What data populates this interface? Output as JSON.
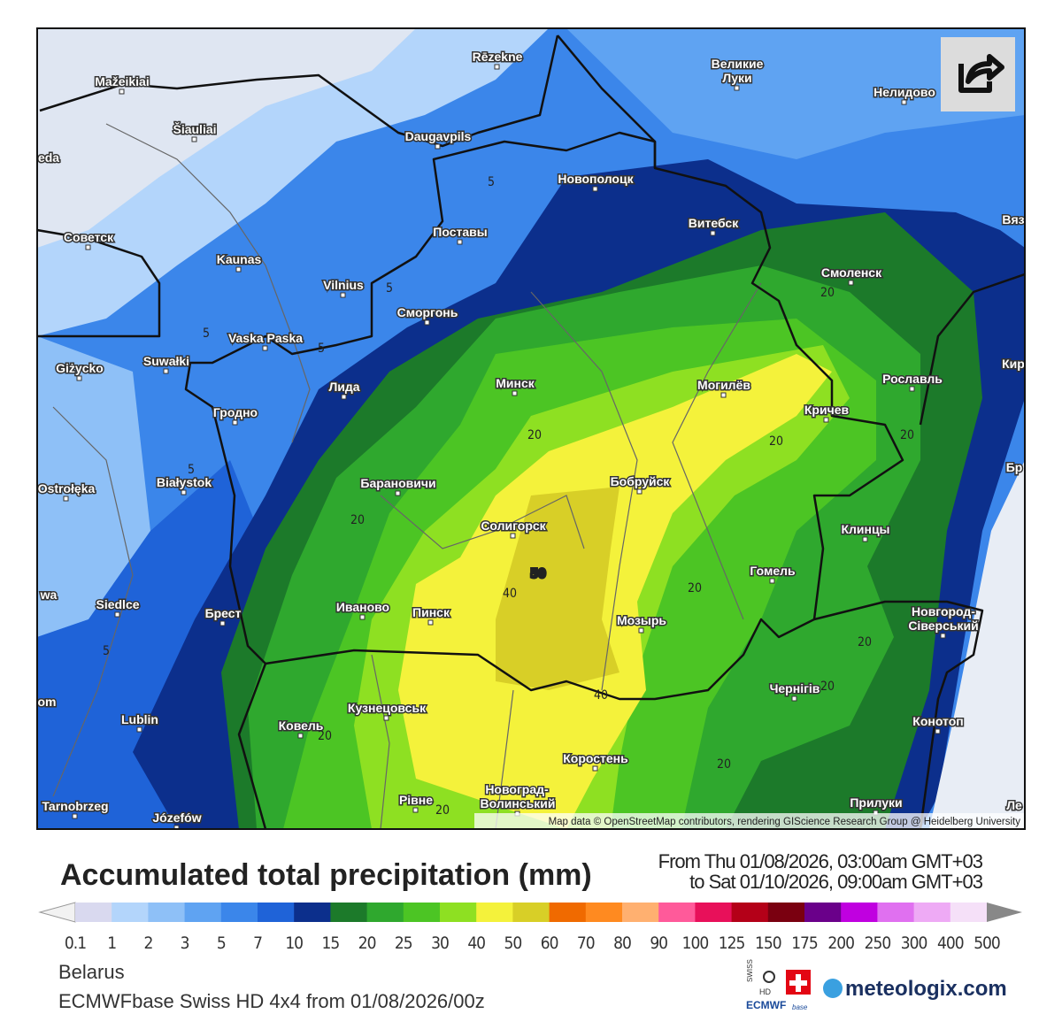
{
  "map": {
    "cities": [
      "Mažeikiai",
      "Šiauliai",
      "Rēzekne",
      "Daugavpils",
      "Великие",
      "Луки",
      "Нелидово",
      "Новополоцк",
      "Витебск",
      "Советск",
      "Kaunas",
      "Поставы",
      "Vilnius",
      "Сморгонь",
      "Смоленск",
      "Vaska Paska",
      "Suwałki",
      "Giżycko",
      "Лида",
      "Минск",
      "Могилёв",
      "Рославль",
      "Гродно",
      "Кричев",
      "Białystok",
      "Ostrołęka",
      "Барановичи",
      "Бобруйск",
      "Солигорск",
      "Клинцы",
      "Гомель",
      "Иваново",
      "Пинск",
      "Мозырь",
      "Siedlce",
      "Брест",
      "Новгород-",
      "Сіверський",
      "Кузнецовськ",
      "Чернігів",
      "Lublin",
      "Ковель",
      "Коростень",
      "Конотоп",
      "Новоград-",
      "Волинський",
      "Рівне",
      "Прилуки",
      "Józefów",
      "Tarnobrzeg",
      "Вяз",
      "Кир",
      "Бр",
      "Ле",
      "wa",
      "om",
      "eda"
    ],
    "contour_labels": [
      5,
      5,
      5,
      5,
      5,
      5,
      20,
      20,
      20,
      20,
      20,
      20,
      20,
      20,
      20,
      20,
      20,
      40,
      40,
      50
    ],
    "attribution": "Map data © OpenStreetMap contributors, rendering GIScience Research Group @ Heidelberg University"
  },
  "legend": {
    "title": "Accumulated total precipitation (mm)",
    "period": [
      "From Thu 01/08/2026, 03:00am GMT+03",
      "to Sat 01/10/2026, 09:00am GMT+03"
    ],
    "labels": [
      "0.1",
      "1",
      "2",
      "3",
      "5",
      "7",
      "10",
      "15",
      "20",
      "25",
      "30",
      "40",
      "50",
      "60",
      "70",
      "80",
      "90",
      "100",
      "125",
      "150",
      "175",
      "200",
      "250",
      "300",
      "400",
      "500"
    ],
    "colors": [
      "#d9d9ef",
      "#b3d5fb",
      "#8ec0f7",
      "#5fa3f2",
      "#3b86ea",
      "#1f63d8",
      "#0c2f8c",
      "#1c7a2a",
      "#2fa82e",
      "#4cc524",
      "#8ee022",
      "#f4f23b",
      "#d8cf27",
      "#f06a00",
      "#ff8a20",
      "#ffb070",
      "#ff5a9a",
      "#e8105a",
      "#b40018",
      "#7a0010",
      "#6a008a",
      "#c000e0",
      "#e070f0",
      "#eeaaf5",
      "#f5e0f8",
      "#cfcfcf"
    ],
    "under_color": "#f2f2f2",
    "over_color": "#888888"
  },
  "footer": {
    "region": "Belarus",
    "model": "ECMWFbase Swiss HD 4x4 from 01/08/2026/00z",
    "logo_swiss": "SWISS",
    "logo_hd": "HD",
    "logo_ecmwf": "ECMWF",
    "logo_base": "base",
    "brand": "meteologix.com"
  }
}
